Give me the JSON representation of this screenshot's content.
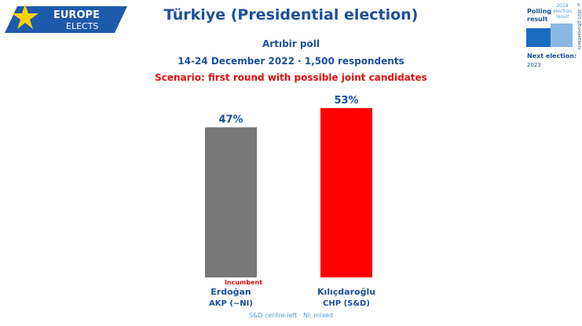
{
  "brand": {
    "line1": "EUROPE",
    "line2": "ELECTS",
    "icon": "star-icon"
  },
  "header": {
    "title": "Türkiye (Presidential election)",
    "pollster": "Artıbir poll",
    "dates": "14-24 December 2022 · 1,500 respondents",
    "scenario": "Scenario: first round with possible joint candidates"
  },
  "legend": {
    "polling_label": "Polling result",
    "previous_label": "2018 election result",
    "copyright": "© 2023 @EuropeElects",
    "next_label": "Next election:",
    "next_year": "2023"
  },
  "colors": {
    "accent": "#1a4f9c",
    "scenario": "#e01010"
  },
  "chart_data": {
    "type": "bar",
    "categories": [
      "Erdoğan",
      "Kılıçdaroğlu"
    ],
    "values": [
      47,
      53
    ],
    "value_labels": [
      "47%",
      "53%"
    ],
    "parties": [
      "AKP (~NI)",
      "CHP (S&D)"
    ],
    "notes": [
      "Incumbent",
      ""
    ],
    "colors": [
      "#777777",
      "#ff0000"
    ],
    "ylim": [
      0,
      53
    ],
    "grid": false,
    "legend": "top-right"
  },
  "footnote": "S&D centre-left · NI: mixed"
}
